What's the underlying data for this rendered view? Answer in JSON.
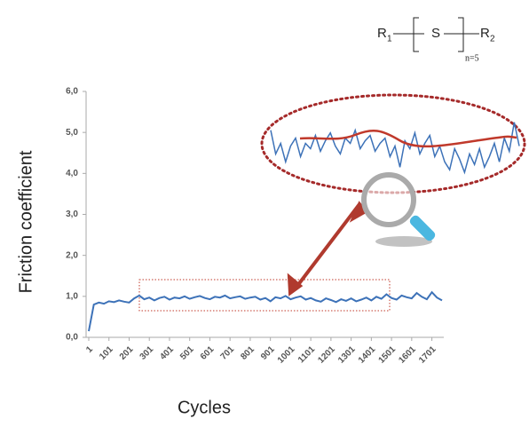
{
  "chart_data": {
    "type": "line",
    "x_label": "Friction coefficient",
    "x_axis_title": "Cycles",
    "formula": {
      "r1": "R",
      "r1_sub": "1",
      "s": "S",
      "r2": "R",
      "r2_sub": "2",
      "n": "n=5"
    },
    "x": [
      1,
      26,
      51,
      76,
      101,
      126,
      151,
      176,
      201,
      226,
      251,
      276,
      301,
      326,
      351,
      376,
      401,
      426,
      451,
      476,
      501,
      526,
      551,
      576,
      601,
      626,
      651,
      676,
      701,
      726,
      751,
      776,
      801,
      826,
      851,
      876,
      901,
      926,
      951,
      976,
      1001,
      1026,
      1051,
      1076,
      1101,
      1126,
      1151,
      1176,
      1201,
      1226,
      1251,
      1276,
      1301,
      1326,
      1351,
      1376,
      1401,
      1426,
      1451,
      1476,
      1501,
      1526,
      1551,
      1576,
      1601,
      1626,
      1651,
      1676,
      1701,
      1726,
      1751
    ],
    "series": [
      {
        "color": "#3d72b8",
        "values": [
          0.15,
          0.8,
          0.85,
          0.82,
          0.88,
          0.86,
          0.9,
          0.87,
          0.85,
          0.95,
          1.02,
          0.93,
          0.97,
          0.9,
          0.96,
          0.99,
          0.92,
          0.97,
          0.95,
          1.0,
          0.94,
          0.98,
          1.01,
          0.96,
          0.93,
          0.99,
          0.97,
          1.02,
          0.95,
          0.98,
          1.0,
          0.94,
          0.97,
          0.99,
          0.92,
          0.96,
          0.88,
          0.98,
          0.95,
          1.01,
          0.93,
          0.97,
          1.0,
          0.92,
          0.96,
          0.9,
          0.87,
          0.95,
          0.91,
          0.86,
          0.93,
          0.89,
          0.95,
          0.88,
          0.92,
          0.97,
          0.9,
          0.99,
          0.94,
          1.05,
          0.96,
          0.92,
          1.02,
          0.98,
          0.95,
          1.08,
          0.99,
          0.93,
          1.1,
          0.97,
          0.9
        ]
      }
    ],
    "xlim": [
      1,
      1760
    ],
    "xticks": [
      1,
      101,
      201,
      301,
      401,
      501,
      601,
      701,
      801,
      901,
      1001,
      1101,
      1201,
      1301,
      1401,
      1501,
      1601,
      1701
    ],
    "ylim": [
      0,
      6
    ],
    "yticks": [
      {
        "value": 0,
        "label": "0,0"
      },
      {
        "value": 1,
        "label": "1,0"
      },
      {
        "value": 2,
        "label": "2,0"
      },
      {
        "value": 3,
        "label": "3,0"
      },
      {
        "value": 4,
        "label": "4,0"
      },
      {
        "value": 5,
        "label": "5,0"
      },
      {
        "value": 6,
        "label": "6,0"
      }
    ]
  }
}
